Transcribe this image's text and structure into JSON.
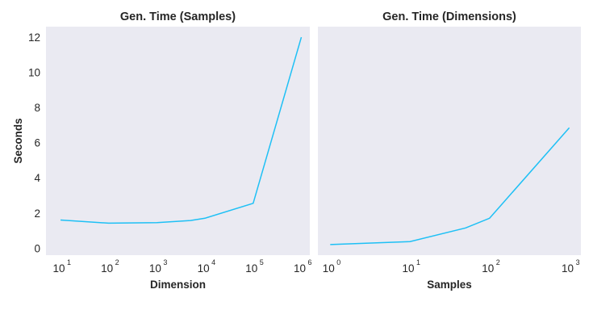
{
  "figure": {
    "background": "#ffffff",
    "panel_bg": "#eaeaf2",
    "line_color": "#1ec0f5"
  },
  "chart_data": [
    {
      "type": "line",
      "title": "Gen. Time (Samples)",
      "xlabel": "Dimension",
      "ylabel": "Seconds",
      "xscale": "log",
      "xlim": [
        5,
        1500000
      ],
      "ylim": [
        -0.4,
        12.6
      ],
      "grid": false,
      "x_ticks": [
        {
          "base": "10",
          "exp": "1",
          "value": 10
        },
        {
          "base": "10",
          "exp": "2",
          "value": 100
        },
        {
          "base": "10",
          "exp": "3",
          "value": 1000
        },
        {
          "base": "10",
          "exp": "4",
          "value": 10000
        },
        {
          "base": "10",
          "exp": "5",
          "value": 100000
        },
        {
          "base": "10",
          "exp": "6",
          "value": 1000000
        }
      ],
      "y_ticks": [
        "0",
        "2",
        "4",
        "6",
        "8",
        "10",
        "12"
      ],
      "x": [
        10,
        100,
        1000,
        5000,
        10000,
        100000,
        1000000
      ],
      "y": [
        1.6,
        1.42,
        1.45,
        1.57,
        1.7,
        2.55,
        12.0
      ]
    },
    {
      "type": "line",
      "title": "Gen. Time (Dimensions)",
      "xlabel": "Samples",
      "ylabel": "",
      "xscale": "log",
      "xlim": [
        0.7,
        1400
      ],
      "ylim": [
        -0.4,
        12.6
      ],
      "grid": false,
      "x_ticks": [
        {
          "base": "10",
          "exp": "0",
          "value": 1
        },
        {
          "base": "10",
          "exp": "1",
          "value": 10
        },
        {
          "base": "10",
          "exp": "2",
          "value": 100
        },
        {
          "base": "10",
          "exp": "3",
          "value": 1000
        }
      ],
      "y_ticks": [],
      "x": [
        1,
        10,
        50,
        100,
        1000
      ],
      "y": [
        0.2,
        0.37,
        1.15,
        1.7,
        6.85
      ]
    }
  ]
}
